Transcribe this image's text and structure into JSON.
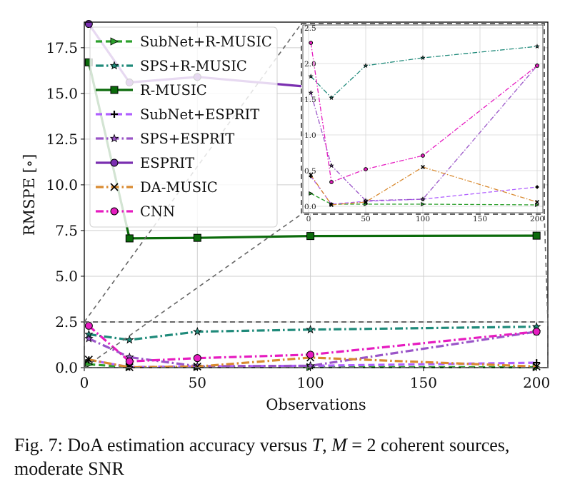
{
  "chart_data": {
    "type": "line",
    "xlabel": "Observations",
    "ylabel": "RMSPE [∘]",
    "xlim": [
      0,
      205
    ],
    "ylim": [
      0,
      18.9
    ],
    "xticks": [
      0,
      50,
      100,
      150,
      200
    ],
    "yticks": [
      0.0,
      2.5,
      5.0,
      7.5,
      10.0,
      12.5,
      15.0,
      17.5
    ],
    "xtick_labels": [
      "0",
      "50",
      "100",
      "150",
      "200"
    ],
    "ytick_labels": [
      "0.0",
      "2.5",
      "5.0",
      "7.5",
      "10.0",
      "12.5",
      "15.0",
      "17.5"
    ],
    "grid": true,
    "legend_position": "upper-left",
    "x": [
      2,
      20,
      50,
      100,
      200
    ],
    "series": [
      {
        "name": "SubNet+R-MUSIC",
        "color": "#2ca02c",
        "dash": "dashed",
        "marker": "triangle-right",
        "values": [
          0.18,
          0.03,
          0.03,
          0.03,
          0.02
        ]
      },
      {
        "name": "SPS+R-MUSIC",
        "color": "#1f8a7a",
        "dash": "dashdot",
        "marker": "star",
        "values": [
          1.82,
          1.52,
          1.97,
          2.08,
          2.24
        ]
      },
      {
        "name": "R-MUSIC",
        "color": "#0b6b0b",
        "dash": "solid",
        "marker": "square",
        "values": [
          16.7,
          7.07,
          7.1,
          7.2,
          7.22
        ]
      },
      {
        "name": "SubNet+ESPRIT",
        "color": "#b060ff",
        "dash": "dashed",
        "marker": "plus",
        "values": [
          0.42,
          0.03,
          0.07,
          0.1,
          0.27
        ]
      },
      {
        "name": "SPS+ESPRIT",
        "color": "#9a55c8",
        "dash": "dashdot",
        "marker": "star",
        "values": [
          1.59,
          0.57,
          0.08,
          0.1,
          1.97
        ]
      },
      {
        "name": "ESPRIT",
        "color": "#7a2fb0",
        "dash": "solid",
        "marker": "circle",
        "values": [
          18.8,
          15.6,
          15.9,
          15.35,
          15.85
        ]
      },
      {
        "name": "DA-MUSIC",
        "color": "#d98a30",
        "dash": "dashdot",
        "marker": "x",
        "values": [
          0.44,
          0.02,
          0.06,
          0.55,
          0.06
        ]
      },
      {
        "name": "CNN",
        "color": "#e61cc0",
        "dash": "dashdot",
        "marker": "circle",
        "values": [
          2.29,
          0.34,
          0.52,
          0.71,
          1.97
        ]
      }
    ],
    "inset": {
      "xlim": [
        0,
        205
      ],
      "ylim": [
        -0.05,
        2.5
      ],
      "xticks": [
        0,
        50,
        100,
        150,
        200
      ],
      "yticks": [
        0.0,
        0.5,
        1.0,
        1.5,
        2.0,
        2.5
      ],
      "xtick_labels": [
        "0",
        "50",
        "100",
        "150",
        "200"
      ],
      "ytick_labels": [
        "0.0",
        "0.5",
        "1.0",
        "1.5",
        "2.0",
        "2.5"
      ],
      "zoom_region": {
        "x": [
          0,
          205
        ],
        "y": [
          0,
          2.5
        ]
      }
    }
  },
  "caption": {
    "prefix": "Fig. 7: DoA estimation accuracy versus ",
    "var_t": "T",
    "comma": ", ",
    "var_m": "M",
    "rest": " = 2 coherent sources, moderate SNR"
  }
}
